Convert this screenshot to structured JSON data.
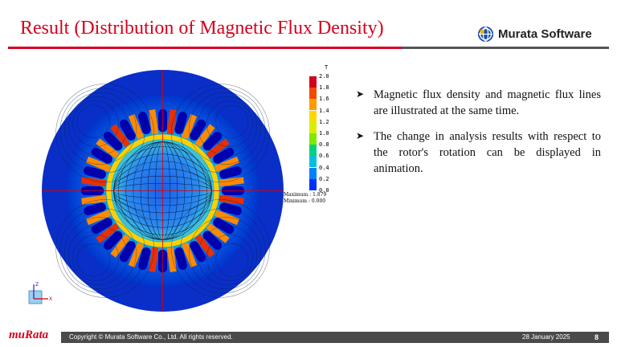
{
  "slide": {
    "title": "Result (Distribution of Magnetic Flux Density)",
    "brand_name": "Murata Software",
    "brand_colors": {
      "accent_red": "#d6001c",
      "footer_gray": "#4a4a4a"
    }
  },
  "figure": {
    "description_icon": "motor-flux-density-plot",
    "colorbar": {
      "unit": "T",
      "labels": [
        "2.0",
        "1.8",
        "1.6",
        "1.4",
        "1.2",
        "1.0",
        "0.8",
        "0.6",
        "0.4",
        "0.2",
        "0.0"
      ],
      "colors": [
        "#d4001a",
        "#f04a00",
        "#ff9a00",
        "#ffd800",
        "#d8f000",
        "#80e800",
        "#00d080",
        "#00c0e0",
        "#0080ff",
        "#0030ff",
        "#0000a0"
      ],
      "maximum_label": "Maximum : 1.879",
      "minimum_label": "Minimum : 0.000"
    },
    "axis": {
      "z_label": "Z",
      "x_label": "X"
    }
  },
  "bullets": [
    "Magnetic flux density and magnetic flux lines are illustrated at the same time.",
    "The change in analysis results with respect to the rotor's rotation can be displayed  in animation."
  ],
  "footer": {
    "logo_text": "muRata",
    "copyright": "Copyright © Murata Software Co., Ltd. All rights reserved.",
    "date": "28 January 2025",
    "page": "8"
  }
}
